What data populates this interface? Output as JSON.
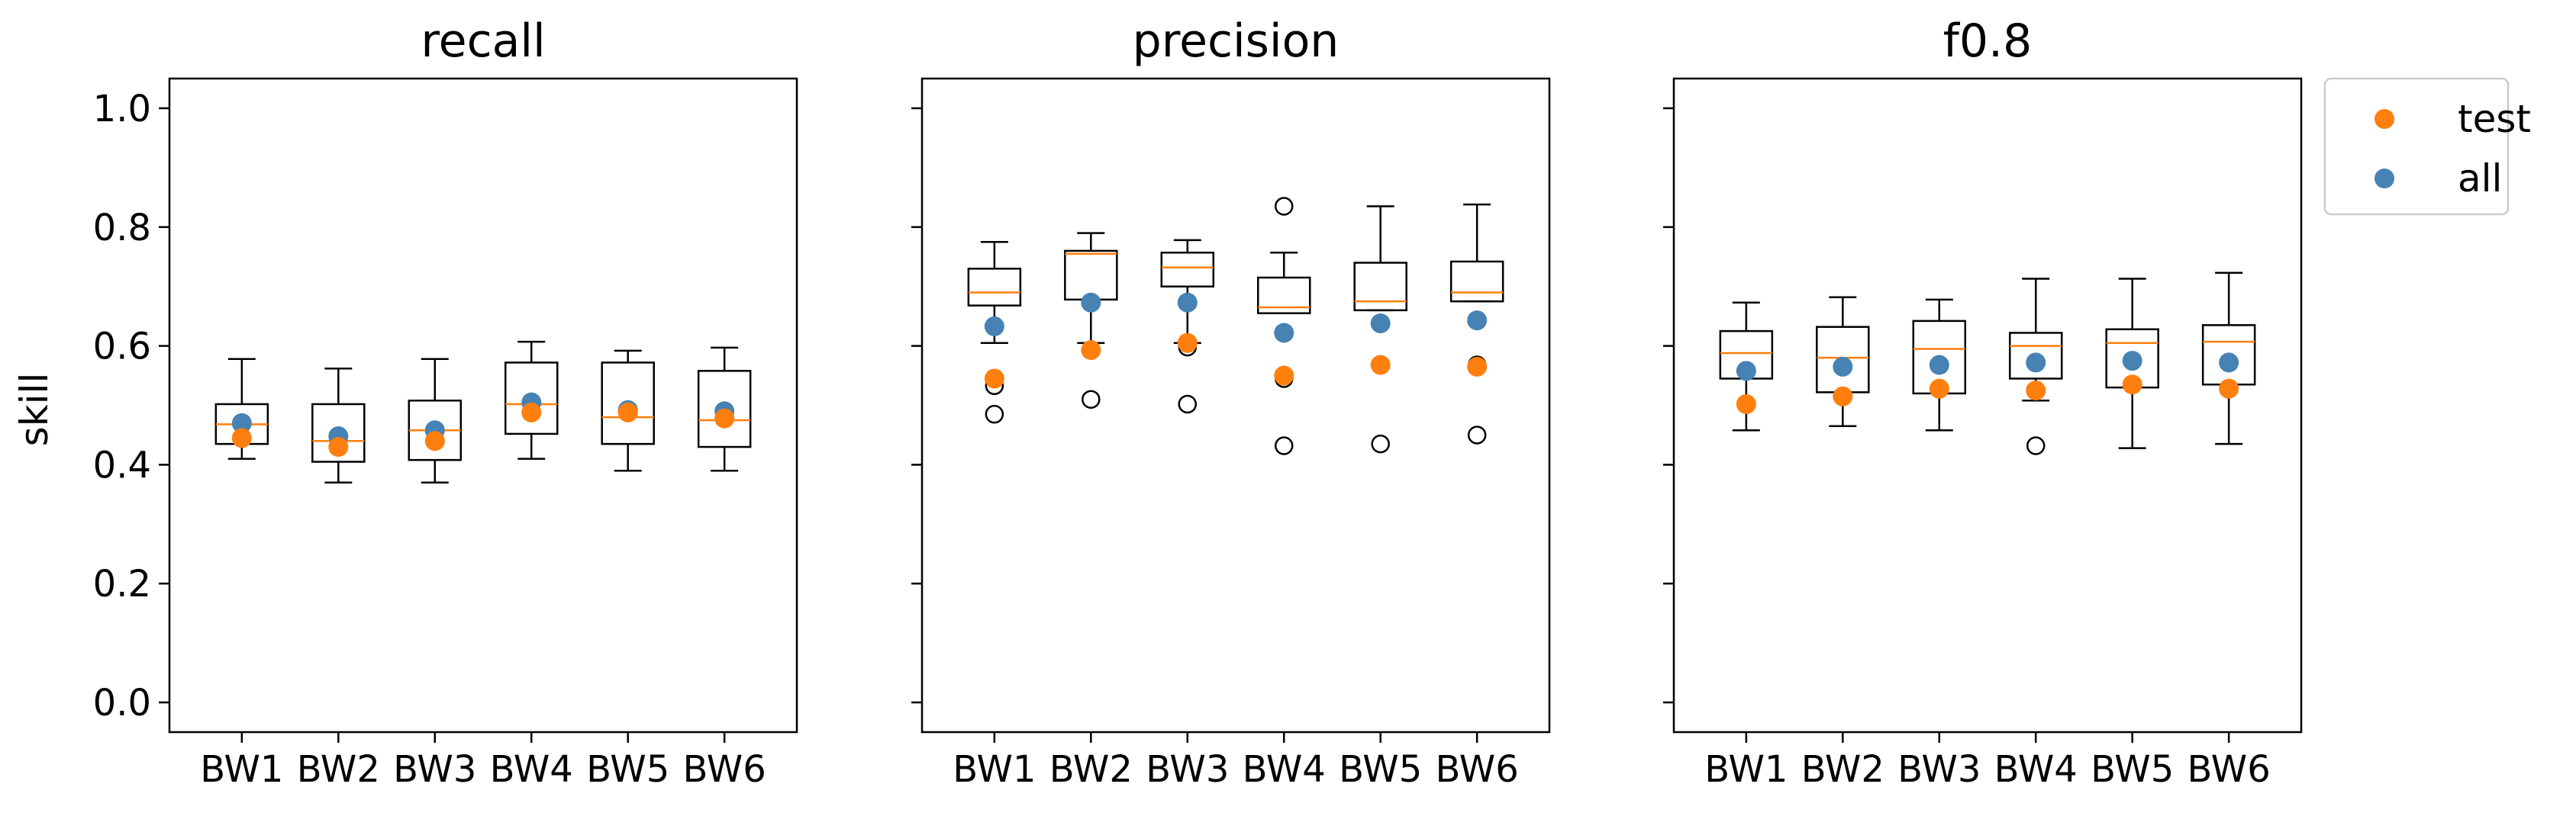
{
  "chart_data": {
    "type": "box",
    "shared_ylabel": "skill",
    "ylim": [
      -0.05,
      1.05
    ],
    "yticks": [
      0.0,
      0.2,
      0.4,
      0.6,
      0.8,
      1.0
    ],
    "ytick_labels": [
      "0.0",
      "0.2",
      "0.4",
      "0.6",
      "0.8",
      "1.0"
    ],
    "categories": [
      "BW1",
      "BW2",
      "BW3",
      "BW4",
      "BW5",
      "BW6"
    ],
    "grid": false,
    "legend": {
      "placement": "outside-right-top",
      "entries": [
        {
          "label": "test",
          "color": "#ff7f0e"
        },
        {
          "label": "all",
          "color": "#4682b4"
        }
      ]
    },
    "colors": {
      "median": "#ff7f0e",
      "test": "#ff7f0e",
      "all": "#4682b4",
      "box": "#000000"
    },
    "panels": [
      {
        "title": "recall",
        "boxes": [
          {
            "category": "BW1",
            "whislo": 0.41,
            "q1": 0.435,
            "median": 0.468,
            "q3": 0.502,
            "whishi": 0.578,
            "fliers": []
          },
          {
            "category": "BW2",
            "whislo": 0.37,
            "q1": 0.405,
            "median": 0.44,
            "q3": 0.502,
            "whishi": 0.562,
            "fliers": []
          },
          {
            "category": "BW3",
            "whislo": 0.37,
            "q1": 0.408,
            "median": 0.458,
            "q3": 0.508,
            "whishi": 0.578,
            "fliers": []
          },
          {
            "category": "BW4",
            "whislo": 0.41,
            "q1": 0.452,
            "median": 0.502,
            "q3": 0.572,
            "whishi": 0.607,
            "fliers": []
          },
          {
            "category": "BW5",
            "whislo": 0.39,
            "q1": 0.435,
            "median": 0.48,
            "q3": 0.572,
            "whishi": 0.592,
            "fliers": []
          },
          {
            "category": "BW6",
            "whislo": 0.39,
            "q1": 0.43,
            "median": 0.475,
            "q3": 0.558,
            "whishi": 0.597,
            "fliers": []
          }
        ],
        "test": [
          0.445,
          0.43,
          0.44,
          0.488,
          0.488,
          0.478
        ],
        "all": [
          0.47,
          0.448,
          0.458,
          0.505,
          0.492,
          0.49
        ]
      },
      {
        "title": "precision",
        "boxes": [
          {
            "category": "BW1",
            "whislo": 0.605,
            "q1": 0.668,
            "median": 0.69,
            "q3": 0.73,
            "whishi": 0.775,
            "fliers": [
              0.533,
              0.485
            ]
          },
          {
            "category": "BW2",
            "whislo": 0.605,
            "q1": 0.678,
            "median": 0.755,
            "q3": 0.76,
            "whishi": 0.79,
            "fliers": [
              0.51
            ]
          },
          {
            "category": "BW3",
            "whislo": 0.605,
            "q1": 0.7,
            "median": 0.732,
            "q3": 0.757,
            "whishi": 0.778,
            "fliers": [
              0.598,
              0.502
            ]
          },
          {
            "category": "BW4",
            "whislo": 0.655,
            "q1": 0.655,
            "median": 0.665,
            "q3": 0.715,
            "whishi": 0.757,
            "fliers": [
              0.835,
              0.545,
              0.432
            ]
          },
          {
            "category": "BW5",
            "whislo": 0.66,
            "q1": 0.66,
            "median": 0.675,
            "q3": 0.74,
            "whishi": 0.835,
            "fliers": [
              0.568,
              0.435
            ]
          },
          {
            "category": "BW6",
            "whislo": 0.675,
            "q1": 0.675,
            "median": 0.69,
            "q3": 0.742,
            "whishi": 0.838,
            "fliers": [
              0.568,
              0.45
            ]
          }
        ],
        "test": [
          0.545,
          0.593,
          0.605,
          0.55,
          0.568,
          0.565
        ],
        "all": [
          0.633,
          0.673,
          0.673,
          0.622,
          0.638,
          0.643
        ]
      },
      {
        "title": "f0.8",
        "boxes": [
          {
            "category": "BW1",
            "whislo": 0.458,
            "q1": 0.545,
            "median": 0.588,
            "q3": 0.625,
            "whishi": 0.673,
            "fliers": []
          },
          {
            "category": "BW2",
            "whislo": 0.465,
            "q1": 0.522,
            "median": 0.58,
            "q3": 0.632,
            "whishi": 0.682,
            "fliers": []
          },
          {
            "category": "BW3",
            "whislo": 0.458,
            "q1": 0.52,
            "median": 0.595,
            "q3": 0.642,
            "whishi": 0.678,
            "fliers": []
          },
          {
            "category": "BW4",
            "whislo": 0.508,
            "q1": 0.545,
            "median": 0.6,
            "q3": 0.622,
            "whishi": 0.713,
            "fliers": [
              0.432
            ]
          },
          {
            "category": "BW5",
            "whislo": 0.428,
            "q1": 0.53,
            "median": 0.605,
            "q3": 0.628,
            "whishi": 0.713,
            "fliers": []
          },
          {
            "category": "BW6",
            "whislo": 0.435,
            "q1": 0.535,
            "median": 0.607,
            "q3": 0.635,
            "whishi": 0.723,
            "fliers": []
          }
        ],
        "test": [
          0.502,
          0.515,
          0.528,
          0.525,
          0.535,
          0.528
        ],
        "all": [
          0.558,
          0.565,
          0.568,
          0.572,
          0.575,
          0.572
        ]
      }
    ]
  }
}
